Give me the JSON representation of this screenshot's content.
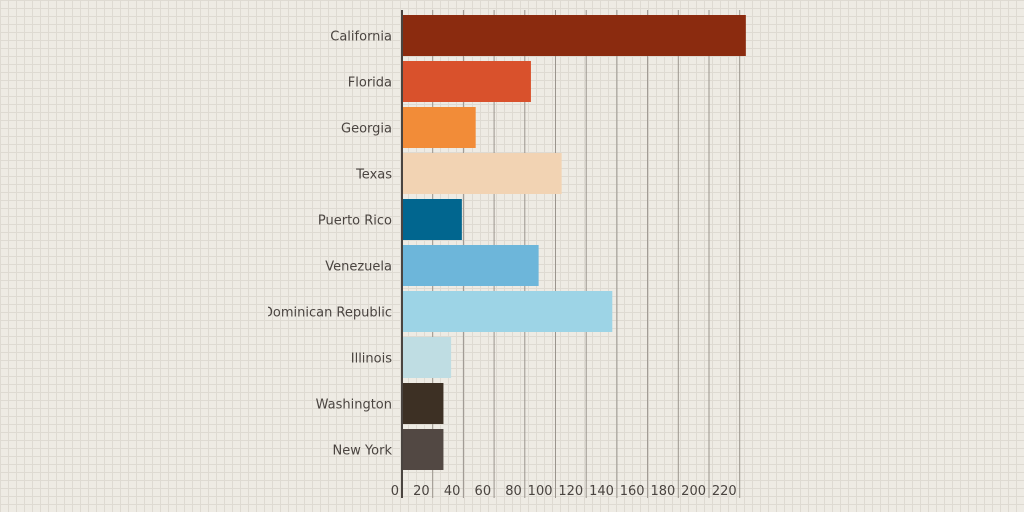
{
  "chart_data": {
    "type": "bar",
    "orientation": "horizontal",
    "categories": [
      "California",
      "Florida",
      "Georgia",
      "Texas",
      "Puerto Rico",
      "Venezuela",
      "Dominican Republic",
      "Illinois",
      "Washington",
      "New York"
    ],
    "values": [
      224,
      84,
      48,
      104,
      39,
      89,
      137,
      32,
      27,
      27
    ],
    "colors": [
      "#8b2b0f",
      "#d9512c",
      "#f28c38",
      "#f2d3b3",
      "#01668f",
      "#6db6da",
      "#9dd4e6",
      "#bfdde3",
      "#3d3024",
      "#524843"
    ],
    "xticks": [
      0,
      20,
      40,
      60,
      80,
      100,
      120,
      140,
      160,
      180,
      200,
      220
    ],
    "xlim": [
      0,
      228
    ],
    "grid": true,
    "title": "",
    "xlabel": "",
    "ylabel": ""
  }
}
